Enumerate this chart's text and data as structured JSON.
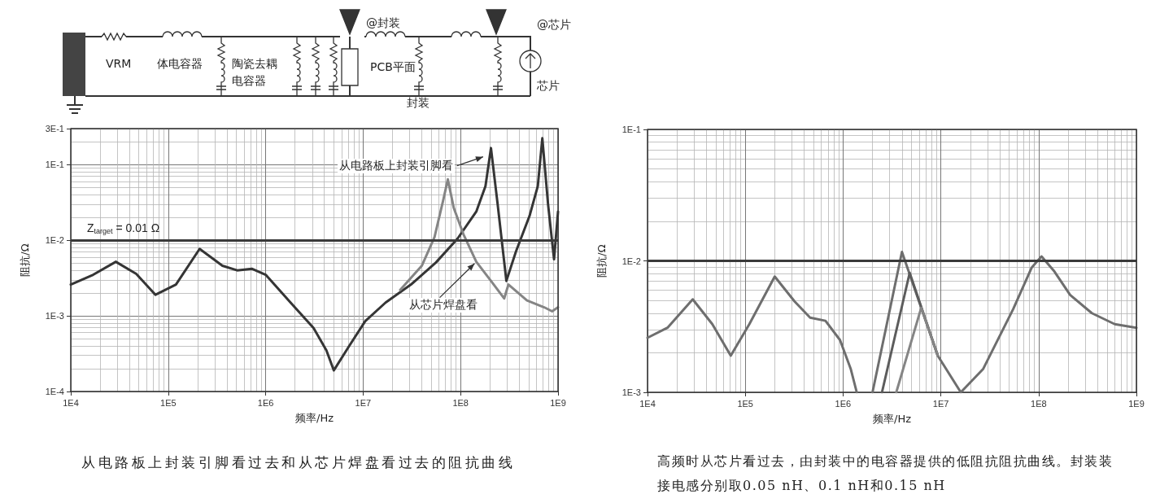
{
  "chart_data": [
    {
      "type": "line",
      "xlabel": "频率/Hz",
      "ylabel": "阻抗/Ω",
      "log": "xy",
      "xlim": [
        10000,
        1000000000
      ],
      "xticks": [
        {
          "value": 10000,
          "label": "1E4"
        },
        {
          "value": 100000,
          "label": "1E5"
        },
        {
          "value": 1000000,
          "label": "1E6"
        },
        {
          "value": 10000000,
          "label": "1E7"
        },
        {
          "value": 100000000,
          "label": "1E8"
        },
        {
          "value": 1000000000,
          "label": "1E9"
        }
      ],
      "ylim": [
        0.0001,
        0.3
      ],
      "yticks": [
        {
          "value": 0.0001,
          "label": "1E-4"
        },
        {
          "value": 0.001,
          "label": "1E-3"
        },
        {
          "value": 0.01,
          "label": "1E-2"
        },
        {
          "value": 0.1,
          "label": "1E-1"
        },
        {
          "value": 0.3,
          "label": "3E-1"
        }
      ],
      "grid": true,
      "marker": "none",
      "line_style": "solid",
      "series": [
        {
          "color": "#353535",
          "x": [
            10000,
            17000,
            29000,
            47000,
            74000,
            120000,
            210000,
            360000,
            510000,
            720000,
            1000000,
            1800000,
            3100000,
            4200000,
            5000000,
            7200000,
            10500000,
            17000000,
            31000000,
            56000000,
            93000000,
            145000000,
            180000000,
            205000000,
            240000000,
            295000000,
            370000000,
            510000000,
            620000000,
            690000000,
            790000000,
            910000000,
            1000000000
          ],
          "values": [
            0.0026,
            0.0035,
            0.0052,
            0.0036,
            0.0019,
            0.0026,
            0.0077,
            0.0046,
            0.004,
            0.0042,
            0.0035,
            0.0015,
            0.00069,
            0.00035,
            0.00019,
            0.0004,
            0.00085,
            0.0015,
            0.0026,
            0.0051,
            0.0105,
            0.024,
            0.052,
            0.166,
            0.03,
            0.0029,
            0.0071,
            0.021,
            0.052,
            0.224,
            0.03,
            0.0056,
            0.024
          ]
        },
        {
          "color": "#858585",
          "x": [
            24000000,
            40000000,
            54000000,
            66000000,
            74000000,
            85000000,
            107000000,
            145000000,
            205000000,
            280000000,
            310000000,
            480000000,
            720000000,
            870000000,
            1000000000
          ],
          "values": [
            0.0022,
            0.0046,
            0.011,
            0.033,
            0.064,
            0.027,
            0.012,
            0.0052,
            0.0029,
            0.0017,
            0.0026,
            0.0016,
            0.0013,
            0.00115,
            0.0013
          ]
        }
      ],
      "ref_lines": [
        {
          "axis": "y",
          "value": 0.01,
          "label": "Z$_{target}$ = 0.01 Ω",
          "color": "#3a3a3a"
        }
      ],
      "annotations": [
        {
          "text": "从电路板上封装引脚看",
          "x": 180000000,
          "y": 0.13
        },
        {
          "text": "从芯片焊盘看",
          "x": 145000000,
          "y": 0.0052
        },
        "从电路板上封装引脚看过去和从芯片焊盘看过去的阻抗曲线",
        "VRM",
        "体电容器",
        "陶瓷去耦电容器",
        "@封装",
        "PCB平面",
        "封装",
        "@芯片",
        "芯片"
      ]
    },
    {
      "type": "line",
      "xlabel": "频率/Hz",
      "ylabel": "阻抗/Ω",
      "log": "xy",
      "xlim": [
        10000,
        1000000000
      ],
      "xticks": [
        {
          "value": 10000,
          "label": "1E4"
        },
        {
          "value": 100000,
          "label": "1E5"
        },
        {
          "value": 1000000,
          "label": "1E6"
        },
        {
          "value": 10000000,
          "label": "1E7"
        },
        {
          "value": 100000000,
          "label": "1E8"
        },
        {
          "value": 1000000000,
          "label": "1E9"
        }
      ],
      "ylim": [
        0.001,
        0.1
      ],
      "yticks": [
        {
          "value": 0.001,
          "label": "1E-3"
        },
        {
          "value": 0.01,
          "label": "1E-2"
        },
        {
          "value": 0.1,
          "label": "1E-1"
        }
      ],
      "grid": true,
      "marker": "none",
      "line_style": "solid",
      "series": [
        {
          "color": "#6e6e6e",
          "x": [
            10000,
            16000,
            29000,
            46000,
            71000,
            110000,
            200000,
            320000,
            460000,
            660000,
            930000,
            1200000,
            1380000,
            1700000,
            2000000,
            4000000,
            9300000,
            16000000,
            27000000,
            55000000,
            85000000,
            107000000,
            145000000,
            210000000,
            350000000,
            600000000,
            1000000000
          ],
          "values": [
            0.0026,
            0.0031,
            0.0051,
            0.0033,
            0.0019,
            0.0033,
            0.0076,
            0.0049,
            0.0037,
            0.0035,
            0.0025,
            0.0015,
            0.001,
            null,
            0.001,
            0.0117,
            0.0019,
            0.001,
            0.0015,
            0.0043,
            0.0089,
            0.0108,
            0.0083,
            0.0055,
            0.004,
            0.0033,
            0.0031
          ]
        },
        {
          "color": "#5c5c5c",
          "x": [
            2500000,
            4800000,
            9300000
          ],
          "values": [
            0.001,
            0.0081,
            0.0019
          ]
        },
        {
          "color": "#858585",
          "x": [
            3500000,
            6300000,
            9300000
          ],
          "values": [
            0.001,
            0.0044,
            0.0019
          ]
        }
      ],
      "ref_lines": [
        {
          "axis": "y",
          "value": 0.01,
          "color": "#3a3a3a"
        }
      ],
      "annotations": [
        "高频时从芯片看过去，由封装中的电容器提供的低阻抗阻抗曲线。封装装接电感分别取0.05 nH、0.1 nH和0.15 nH"
      ]
    }
  ]
}
